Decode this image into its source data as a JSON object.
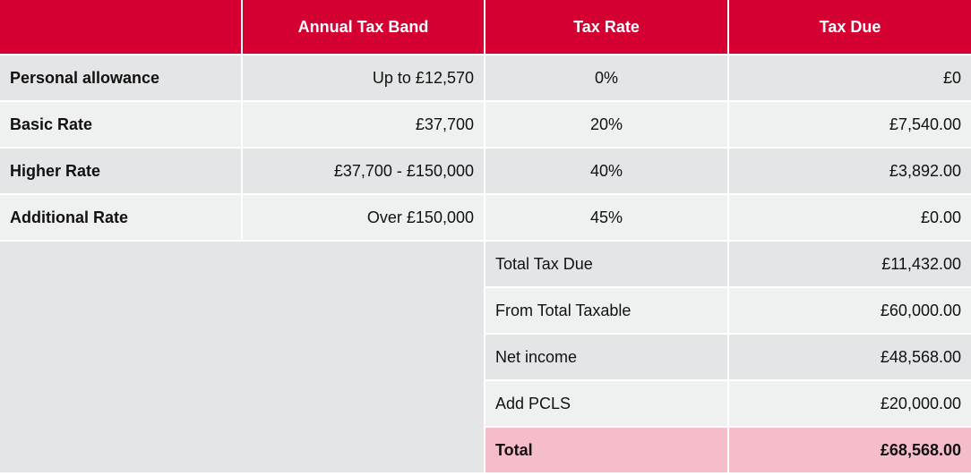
{
  "header": {
    "col1": "",
    "col2": "Annual Tax Band",
    "col3": "Tax Rate",
    "col4": "Tax Due"
  },
  "bands": [
    {
      "name": "Personal allowance",
      "band": "Up to £12,570",
      "rate": "0%",
      "due": "£0"
    },
    {
      "name": "Basic Rate",
      "band": "£37,700",
      "rate": "20%",
      "due": "£7,540.00"
    },
    {
      "name": "Higher Rate",
      "band": "£37,700 - £150,000",
      "rate": "40%",
      "due": "£3,892.00"
    },
    {
      "name": "Additional Rate",
      "band": "Over £150,000",
      "rate": "45%",
      "due": "£0.00"
    }
  ],
  "summary": [
    {
      "label": "Total Tax Due",
      "value": "£11,432.00"
    },
    {
      "label": "From Total Taxable",
      "value": "£60,000.00"
    },
    {
      "label": "Net income",
      "value": "£48,568.00"
    },
    {
      "label": "Add PCLS",
      "value": "£20,000.00"
    }
  ],
  "total": {
    "label": "Total",
    "value": "£68,568.00"
  },
  "colors": {
    "header": "#d50032",
    "row_dark": "#e4e5e7",
    "row_light": "#eff0f0",
    "total": "#f5bdca"
  }
}
